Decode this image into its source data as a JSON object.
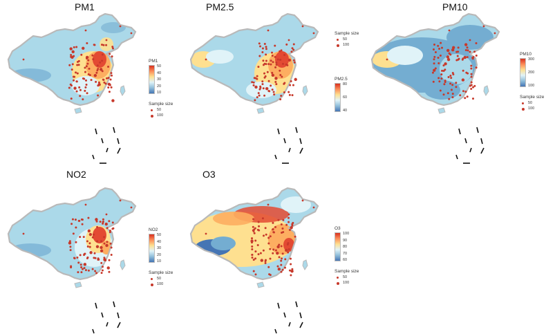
{
  "figure": {
    "panels": [
      {
        "id": "pm1",
        "title": "PM1",
        "legend": {
          "title": "PM1",
          "ticks": [
            "50",
            "40",
            "30",
            "20",
            "10"
          ],
          "colors": [
            "#d7301f",
            "#fc8d59",
            "#fee090",
            "#e0f3f8",
            "#91bfdb",
            "#4575b4"
          ]
        },
        "sample_size": {
          "title": "Sample size",
          "labels": [
            "50",
            "100"
          ]
        },
        "scheme": "pm1"
      },
      {
        "id": "pm25",
        "title": "PM2.5",
        "legend": {
          "title": "PM2.5",
          "ticks": [
            "80",
            "60",
            "40"
          ],
          "colors": [
            "#d7301f",
            "#fc8d59",
            "#fee090",
            "#e0f3f8",
            "#91bfdb",
            "#4575b4"
          ]
        },
        "sample_size": {
          "title": "Sample size",
          "labels": [
            "50",
            "100"
          ]
        },
        "scheme": "pm25"
      },
      {
        "id": "pm10",
        "title": "PM10",
        "legend": {
          "title": "PM10",
          "ticks": [
            "300",
            "200",
            "100"
          ],
          "colors": [
            "#d7301f",
            "#fc8d59",
            "#fee090",
            "#e0f3f8",
            "#91bfdb",
            "#4575b4"
          ]
        },
        "sample_size": {
          "title": "Sample size",
          "labels": [
            "50",
            "100"
          ]
        },
        "scheme": "pm10"
      },
      {
        "id": "no2",
        "title": "NO2",
        "legend": {
          "title": "NO2",
          "ticks": [
            "50",
            "40",
            "30",
            "20",
            "10"
          ],
          "colors": [
            "#d7301f",
            "#fc8d59",
            "#fee090",
            "#e0f3f8",
            "#91bfdb",
            "#4575b4"
          ]
        },
        "sample_size": {
          "title": "Sample size",
          "labels": [
            "50",
            "100"
          ]
        },
        "scheme": "no2"
      },
      {
        "id": "o3",
        "title": "O3",
        "legend": {
          "title": "O3",
          "ticks": [
            "100",
            "90",
            "80",
            "70",
            "60"
          ],
          "colors": [
            "#d7301f",
            "#fc8d59",
            "#fee090",
            "#e0f3f8",
            "#91bfdb",
            "#4575b4"
          ]
        },
        "sample_size": {
          "title": "Sample size",
          "labels": [
            "50",
            "100"
          ]
        },
        "scheme": "o3"
      }
    ],
    "colors": {
      "border": "#b9b9b9",
      "dot": "#c7392b",
      "hot": "#e34a33",
      "warm": "#fdae61",
      "yellow": "#fee090",
      "pale": "#e0f3f8",
      "light_blue": "#abd9e9",
      "mid_blue": "#74add1",
      "dark_blue": "#4575b4"
    }
  }
}
